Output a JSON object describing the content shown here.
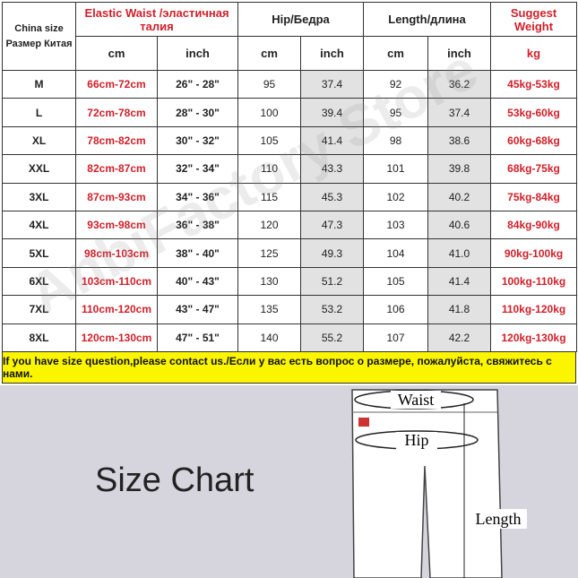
{
  "headers": {
    "size": "China size",
    "size_ru": "Размер Китая",
    "waist": "Elastic Waist /эластичная талия",
    "hip": "Hip/Бедра",
    "length": "Length/длина",
    "weight": "Suggest Weight",
    "cm": "cm",
    "inch": "inch",
    "kg": "kg"
  },
  "rows": [
    [
      "M",
      "66cm-72cm",
      "26\" - 28\"",
      "95",
      "37.4",
      "92",
      "36.2",
      "45kg-53kg"
    ],
    [
      "L",
      "72cm-78cm",
      "28\" - 30\"",
      "100",
      "39.4",
      "95",
      "37.4",
      "53kg-60kg"
    ],
    [
      "XL",
      "78cm-82cm",
      "30\" - 32\"",
      "105",
      "41.4",
      "98",
      "38.6",
      "60kg-68kg"
    ],
    [
      "XXL",
      "82cm-87cm",
      "32\" - 34\"",
      "110",
      "43.3",
      "101",
      "39.8",
      "68kg-75kg"
    ],
    [
      "3XL",
      "87cm-93cm",
      "34\" - 36\"",
      "115",
      "45.3",
      "102",
      "40.2",
      "75kg-84kg"
    ],
    [
      "4XL",
      "93cm-98cm",
      "36\" - 38\"",
      "120",
      "47.3",
      "103",
      "40.6",
      "84kg-90kg"
    ],
    [
      "5XL",
      "98cm-103cm",
      "38\" - 40\"",
      "125",
      "49.3",
      "104",
      "41.0",
      "90kg-100kg"
    ],
    [
      "6XL",
      "103cm-110cm",
      "40\" - 43\"",
      "130",
      "51.2",
      "105",
      "41.4",
      "100kg-110kg"
    ],
    [
      "7XL",
      "110cm-120cm",
      "43\" - 47\"",
      "135",
      "53.2",
      "106",
      "41.8",
      "110kg-120kg"
    ],
    [
      "8XL",
      "120cm-130cm",
      "47\" - 51\"",
      "140",
      "55.2",
      "107",
      "42.2",
      "120kg-130kg"
    ]
  ],
  "banner": "If you have size question,please contact us./Если у вас есть вопрос о размере, пожалуйста, свяжитесь с нами.",
  "chart_title": "Size Chart",
  "diagram": {
    "waist": "Waist",
    "hip": "Hip",
    "length": "Length"
  },
  "watermark": "AnbiFactory Store",
  "colors": {
    "red": "#d0202a",
    "banner": "#fbf500",
    "shade": "#e2e2e2"
  }
}
